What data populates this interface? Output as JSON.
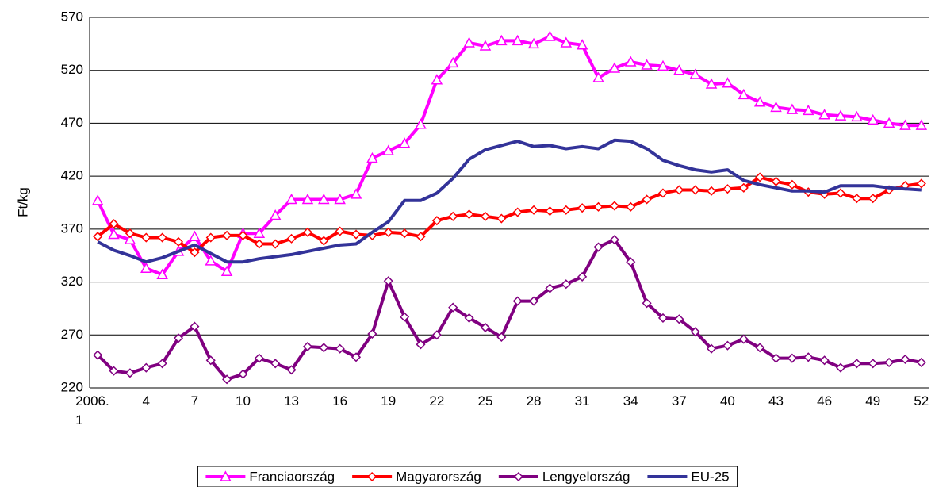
{
  "chart_data": {
    "type": "line",
    "y_label": "Ft/kg",
    "categories": [
      "2006.\n1",
      null,
      null,
      "4",
      null,
      null,
      "7",
      null,
      null,
      "10",
      null,
      null,
      "13",
      null,
      null,
      "16",
      null,
      null,
      "19",
      null,
      null,
      "22",
      null,
      null,
      "25",
      null,
      null,
      "28",
      null,
      null,
      "31",
      null,
      null,
      "34",
      null,
      null,
      "37",
      null,
      null,
      "40",
      null,
      null,
      "43",
      null,
      null,
      "46",
      null,
      null,
      "49",
      null,
      null,
      "52"
    ],
    "ylim": [
      220,
      570
    ],
    "yticks": [
      220,
      270,
      320,
      370,
      420,
      470,
      520,
      570
    ],
    "grid": true,
    "legend": "bottom",
    "series": [
      {
        "name": "Franciaország",
        "color": "#ff00ff",
        "marker": "triangle",
        "values": [
          397,
          365,
          360,
          333,
          327,
          349,
          363,
          340,
          330,
          366,
          366,
          383,
          398,
          398,
          398,
          398,
          403,
          437,
          444,
          451,
          469,
          511,
          527,
          546,
          543,
          548,
          548,
          545,
          552,
          546,
          544,
          513,
          522,
          528,
          525,
          524,
          520,
          516,
          507,
          508,
          497,
          490,
          485,
          483,
          482,
          478,
          477,
          476,
          473,
          470,
          468,
          468
        ]
      },
      {
        "name": "Magyarország",
        "color": "#ff0000",
        "marker": "diamond",
        "values": [
          363,
          375,
          366,
          362,
          362,
          358,
          348,
          362,
          364,
          364,
          356,
          356,
          361,
          367,
          359,
          368,
          365,
          364,
          367,
          366,
          363,
          378,
          382,
          384,
          382,
          380,
          386,
          388,
          387,
          388,
          390,
          391,
          392,
          391,
          398,
          404,
          407,
          407,
          406,
          408,
          409,
          419,
          415,
          412,
          405,
          403,
          404,
          399,
          399,
          407,
          411,
          413
        ]
      },
      {
        "name": "Lengyelország",
        "color": "#800080",
        "marker": "diamond",
        "values": [
          251,
          236,
          234,
          239,
          243,
          267,
          278,
          246,
          228,
          233,
          248,
          243,
          237,
          259,
          258,
          257,
          249,
          271,
          321,
          287,
          261,
          270,
          296,
          286,
          277,
          268,
          302,
          302,
          314,
          318,
          325,
          353,
          360,
          339,
          300,
          286,
          285,
          273,
          257,
          260,
          266,
          258,
          248,
          248,
          249,
          246,
          239,
          243,
          243,
          244,
          247,
          244
        ]
      },
      {
        "name": "EU-25",
        "color": "#333399",
        "marker": "none",
        "values": [
          358,
          350,
          345,
          339,
          343,
          349,
          355,
          347,
          339,
          339,
          342,
          344,
          346,
          349,
          352,
          355,
          356,
          367,
          377,
          397,
          397,
          404,
          418,
          436,
          445,
          449,
          453,
          448,
          449,
          446,
          448,
          446,
          454,
          453,
          446,
          435,
          430,
          426,
          424,
          426,
          416,
          412,
          409,
          406,
          406,
          405,
          411,
          411,
          411,
          409,
          408,
          407
        ]
      }
    ]
  }
}
